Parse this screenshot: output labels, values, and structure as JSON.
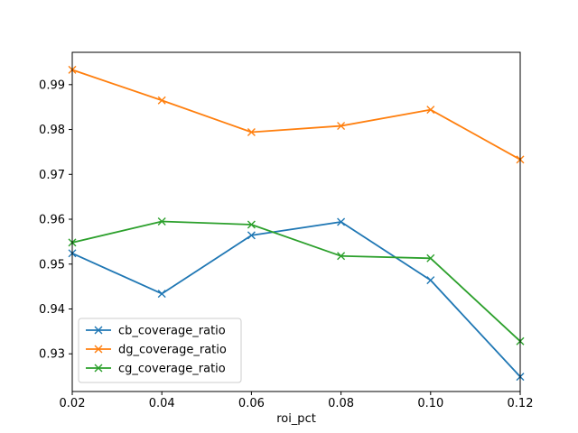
{
  "chart_data": {
    "type": "line",
    "title": "",
    "xlabel": "roi_pct",
    "ylabel": "",
    "x": [
      0.02,
      0.04,
      0.06,
      0.08,
      0.1,
      0.12
    ],
    "xlim": [
      0.02,
      0.12
    ],
    "ylim": [
      0.9216,
      0.9972
    ],
    "x_ticks": [
      "0.02",
      "0.04",
      "0.06",
      "0.08",
      "0.10",
      "0.12"
    ],
    "y_ticks": [
      "0.93",
      "0.94",
      "0.95",
      "0.96",
      "0.97",
      "0.98",
      "0.99"
    ],
    "y_tick_values": [
      0.93,
      0.94,
      0.95,
      0.96,
      0.97,
      0.98,
      0.99
    ],
    "grid": false,
    "legend_position": "lower-left",
    "marker": "x",
    "series": [
      {
        "name": "cb_coverage_ratio",
        "color": "#1f77b4",
        "values": [
          0.9524,
          0.9434,
          0.9564,
          0.9594,
          0.9464,
          0.9249
        ]
      },
      {
        "name": "dg_coverage_ratio",
        "color": "#ff7f0e",
        "values": [
          0.9933,
          0.9865,
          0.9794,
          0.9808,
          0.9844,
          0.9733
        ]
      },
      {
        "name": "cg_coverage_ratio",
        "color": "#2ca02c",
        "values": [
          0.9548,
          0.9595,
          0.9588,
          0.9518,
          0.9513,
          0.9328
        ]
      }
    ]
  }
}
